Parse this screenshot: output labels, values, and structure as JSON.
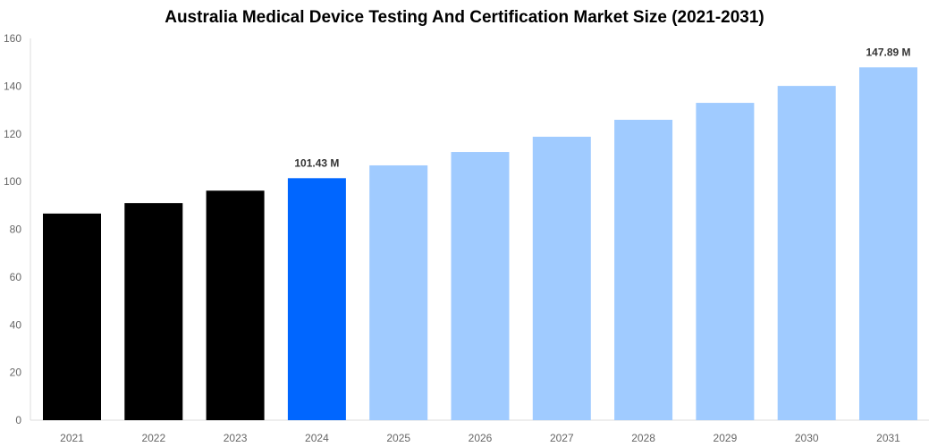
{
  "chart_data": {
    "type": "bar",
    "title": "Australia Medical Device Testing And Certification Market Size (2021-2031)",
    "xlabel": "",
    "ylabel": "",
    "categories": [
      "2021",
      "2022",
      "2023",
      "2024",
      "2025",
      "2026",
      "2027",
      "2028",
      "2029",
      "2030",
      "2031"
    ],
    "values": [
      86.6,
      91.0,
      96.2,
      101.43,
      106.8,
      112.4,
      118.8,
      125.9,
      133.0,
      140.1,
      147.89
    ],
    "data_labels": {
      "3": "101.43 M",
      "10": "147.89 M"
    },
    "colors": [
      "#000000",
      "#000000",
      "#000000",
      "#0066ff",
      "#a0cbff",
      "#a0cbff",
      "#a0cbff",
      "#a0cbff",
      "#a0cbff",
      "#a0cbff",
      "#a0cbff"
    ],
    "ylim": [
      0,
      160
    ],
    "yticks": [
      0,
      20,
      40,
      60,
      80,
      100,
      120,
      140,
      160
    ],
    "grid": false,
    "legend": "none"
  }
}
